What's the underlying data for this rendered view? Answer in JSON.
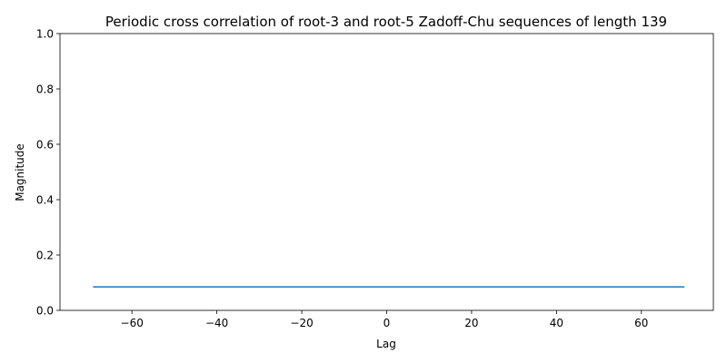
{
  "chart_data": {
    "type": "line",
    "title": "Periodic cross correlation of root-3 and root-5 Zadoff-Chu sequences of length 139",
    "xlabel": "Lag",
    "ylabel": "Magnitude",
    "xlim": [
      -76.95,
      76.95
    ],
    "ylim": [
      0,
      1
    ],
    "xticks": [
      -60,
      -40,
      -20,
      0,
      20,
      40,
      60
    ],
    "xtick_labels": [
      "−60",
      "−40",
      "−20",
      "0",
      "20",
      "40",
      "60"
    ],
    "yticks": [
      0,
      0.2,
      0.4,
      0.6,
      0.8,
      1
    ],
    "ytick_labels": [
      "0.0",
      "0.2",
      "0.4",
      "0.6",
      "0.8",
      "1.0"
    ],
    "grid": false,
    "series": [
      {
        "color": "#1f77b4",
        "x": [
          -69,
          70
        ],
        "y": [
          0.0848,
          0.0848
        ]
      }
    ]
  }
}
